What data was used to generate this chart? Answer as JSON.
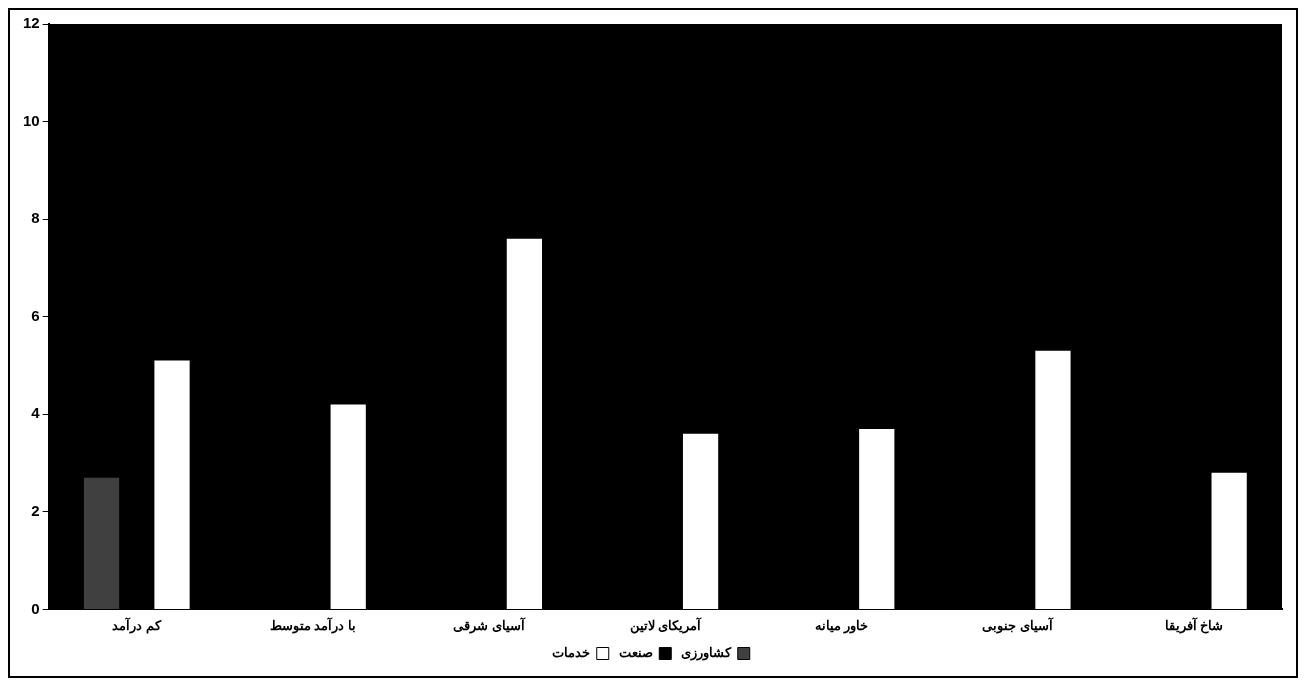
{
  "chart_data": {
    "type": "bar",
    "categories": [
      "کم درآمد",
      "با درآمد متوسط",
      "آسیای شرقی",
      "آمریکای لاتین",
      "خاور میانه",
      "آسیای جنوبی",
      "شاخ آفریقا"
    ],
    "series": [
      {
        "name": "کشاورزی",
        "color": "#404040",
        "values": [
          2.7,
          null,
          null,
          null,
          null,
          null,
          null
        ]
      },
      {
        "name": "صنعت",
        "color": "#000000",
        "values": [
          null,
          null,
          null,
          null,
          null,
          null,
          null
        ]
      },
      {
        "name": "خدمات",
        "color": "#ffffff",
        "values": [
          5.1,
          4.2,
          7.6,
          3.6,
          3.7,
          5.3,
          2.8
        ]
      }
    ],
    "ylim": [
      0,
      12
    ],
    "yticks": [
      0,
      2,
      4,
      6,
      8,
      10,
      12
    ],
    "grid": false,
    "legend": "bottom"
  }
}
